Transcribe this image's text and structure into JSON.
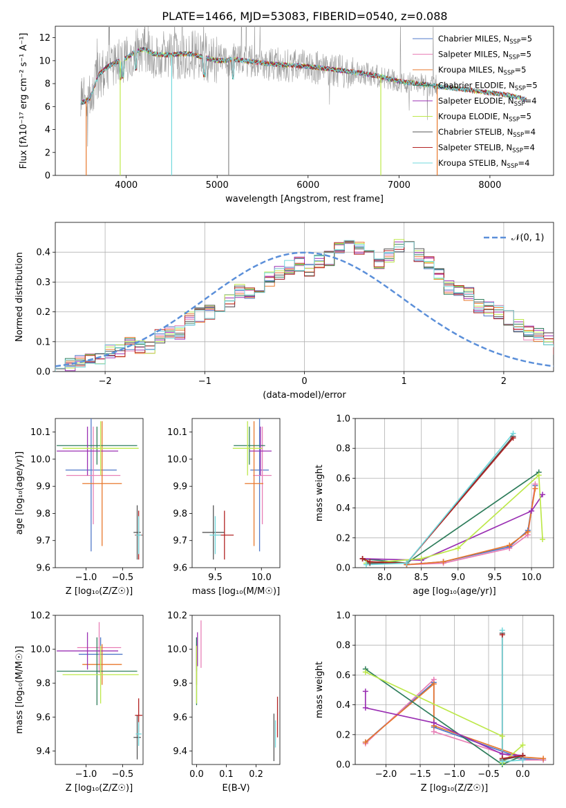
{
  "figure_title": "PLATE=1466, MJD=53083, FIBERID=0540, z=0.088",
  "colors": {
    "Chabrier MILES": "#4f78c8",
    "Salpeter MILES": "#e87fb6",
    "Kroupa MILES": "#e8772b",
    "Chabrier ELODIE": "#2e7d5b",
    "Salpeter ELODIE": "#9a2fb3",
    "Kroupa ELODIE": "#bde84a",
    "Chabrier STELIB": "#555555",
    "Salpeter STELIB": "#b22222",
    "Kroupa STELIB": "#72d8dc",
    "normal": "#5b8fd9",
    "grid": "#b0b0b0"
  },
  "chart_data": [
    {
      "id": "spectrum",
      "type": "line",
      "xlabel": "wavelength [Angstrom, rest frame]",
      "ylabel": "Flux [fλ10⁻¹⁷ erg cm⁻² s⁻¹ A⁻¹]",
      "xlim": [
        3220,
        8700
      ],
      "ylim": [
        0,
        13
      ],
      "xticks": [
        4000,
        5000,
        6000,
        7000,
        8000
      ],
      "yticks": [
        0,
        2,
        4,
        6,
        8,
        10,
        12
      ],
      "grid": false,
      "legend_position": "upper-right",
      "continuum": {
        "x": [
          3500,
          3600,
          3700,
          3800,
          3900,
          4000,
          4100,
          4200,
          4300,
          4400,
          4500,
          4600,
          4700,
          4800,
          4900,
          5000,
          5200,
          5400,
          5600,
          5800,
          6000,
          6200,
          6400,
          6600,
          6800,
          7000,
          7200,
          7400,
          7600,
          7800,
          8000,
          8200,
          8400
        ],
        "y": [
          6.3,
          6.7,
          8.8,
          9.5,
          9.9,
          10.2,
          10.8,
          11.0,
          10.6,
          10.5,
          10.5,
          10.6,
          10.6,
          10.4,
          10.2,
          10.0,
          10.1,
          9.9,
          9.7,
          9.6,
          9.5,
          9.3,
          9.1,
          8.9,
          8.6,
          8.2,
          8.0,
          7.8,
          7.6,
          7.4,
          7.2,
          7.0,
          6.6
        ]
      },
      "series": [
        {
          "name": "Chabrier MILES, N_SSP=5",
          "label_main": "Chabrier MILES, N",
          "label_sub": "SSP",
          "label_tail": "=5"
        },
        {
          "name": "Salpeter MILES, N_SSP=5",
          "label_main": "Salpeter MILES, N",
          "label_sub": "SSP",
          "label_tail": "=5"
        },
        {
          "name": "Kroupa MILES, N_SSP=5",
          "label_main": "Kroupa MILES, N",
          "label_sub": "SSP",
          "label_tail": "=5"
        },
        {
          "name": "Chabrier ELODIE, N_SSP=5",
          "label_main": "Chabrier ELODIE, N",
          "label_sub": "SSP",
          "label_tail": "=5"
        },
        {
          "name": "Salpeter ELODIE, N_SSP=4",
          "label_main": "Salpeter ELODIE, N",
          "label_sub": "SSP",
          "label_tail": "=4"
        },
        {
          "name": "Kroupa ELODIE, N_SSP=5",
          "label_main": "Kroupa ELODIE, N",
          "label_sub": "SSP",
          "label_tail": "=5"
        },
        {
          "name": "Chabrier STELIB, N_SSP=4",
          "label_main": "Chabrier STELIB, N",
          "label_sub": "SSP",
          "label_tail": "=4"
        },
        {
          "name": "Salpeter STELIB, N_SSP=4",
          "label_main": "Salpeter STELIB, N",
          "label_sub": "SSP",
          "label_tail": "=4"
        },
        {
          "name": "Kroupa STELIB, N_SSP=4",
          "label_main": "Kroupa STELIB, N",
          "label_sub": "SSP",
          "label_tail": "=4"
        }
      ]
    },
    {
      "id": "residuals",
      "type": "histogram",
      "xlabel": "(data-model)/error",
      "ylabel": "Normed distribution",
      "xlim": [
        -2.5,
        2.5
      ],
      "ylim": [
        0,
        0.5
      ],
      "xticks": [
        -2,
        -1,
        0,
        1,
        2
      ],
      "xticklabels": [
        "−2",
        "−1",
        "0",
        "1",
        "2"
      ],
      "yticks": [
        0.0,
        0.1,
        0.2,
        0.3,
        0.4
      ],
      "yticklabels": [
        "0.0",
        "0.1",
        "0.2",
        "0.3",
        "0.4"
      ],
      "grid": true,
      "bin_width": 0.1,
      "bins_start": -2.5,
      "base_heights": [
        0.02,
        0.02,
        0.03,
        0.04,
        0.05,
        0.07,
        0.07,
        0.09,
        0.08,
        0.08,
        0.12,
        0.13,
        0.13,
        0.18,
        0.19,
        0.2,
        0.22,
        0.24,
        0.27,
        0.26,
        0.28,
        0.31,
        0.33,
        0.35,
        0.36,
        0.34,
        0.37,
        0.38,
        0.41,
        0.43,
        0.41,
        0.39,
        0.36,
        0.39,
        0.42,
        0.42,
        0.39,
        0.36,
        0.33,
        0.28,
        0.27,
        0.26,
        0.22,
        0.21,
        0.2,
        0.18,
        0.15,
        0.13,
        0.12,
        0.11,
        0.08,
        0.07,
        0.07,
        0.06,
        0.05,
        0.05,
        0.04,
        0.03,
        0.03,
        0.03,
        0.02,
        0.02
      ],
      "normal_curve": {
        "label": "𝒩(0, 1)",
        "mean": 0,
        "sigma": 1
      },
      "legend_position": "upper-right"
    },
    {
      "id": "age_vs_Z",
      "type": "errorbar",
      "xlabel": "Z [log₁₀(Z/Z☉)]",
      "ylabel": "age  [log₁₀(age/yr)]",
      "xlim": [
        -1.42,
        -0.22
      ],
      "ylim": [
        9.6,
        10.15
      ],
      "xticks": [
        -1.0,
        -0.5
      ],
      "xticklabels": [
        "−1.0",
        "−0.5"
      ],
      "yticks": [
        9.6,
        9.7,
        9.8,
        9.9,
        10.0,
        10.1
      ],
      "yticklabels": [
        "9.6",
        "9.7",
        "9.8",
        "9.9",
        "10.0",
        "10.1"
      ],
      "grid": false,
      "points": [
        {
          "series": "Chabrier MILES",
          "x": -0.93,
          "xerr": 0.35,
          "y": 9.96,
          "yerr": 0.3
        },
        {
          "series": "Salpeter MILES",
          "x": -0.9,
          "xerr": 0.37,
          "y": 9.94,
          "yerr": 0.18
        },
        {
          "series": "Kroupa MILES",
          "x": -0.78,
          "xerr": 0.27,
          "y": 9.91,
          "yerr": 0.23
        },
        {
          "series": "Chabrier ELODIE",
          "x": -0.85,
          "xerr": 0.55,
          "y": 10.05,
          "yerr": 0.07
        },
        {
          "series": "Salpeter ELODIE",
          "x": -0.98,
          "xerr": 0.42,
          "y": 10.03,
          "yerr": 0.09
        },
        {
          "series": "Kroupa ELODIE",
          "x": -0.8,
          "xerr": 0.52,
          "y": 10.04,
          "yerr": 0.1
        },
        {
          "series": "Chabrier STELIB",
          "x": -0.3,
          "xerr": 0.05,
          "y": 9.73,
          "yerr": 0.1
        },
        {
          "series": "Salpeter STELIB",
          "x": -0.28,
          "xerr": 0.05,
          "y": 9.72,
          "yerr": 0.09
        },
        {
          "series": "Kroupa STELIB",
          "x": -0.28,
          "xerr": 0.04,
          "y": 9.72,
          "yerr": 0.07
        }
      ]
    },
    {
      "id": "age_vs_mass",
      "type": "errorbar",
      "xlabel": "mass [log₁₀(M/M☉)]",
      "ylabel": "",
      "xlim": [
        9.25,
        10.2
      ],
      "ylim": [
        9.6,
        10.15
      ],
      "xticks": [
        9.5,
        10.0
      ],
      "xticklabels": [
        "9.5",
        "10.0"
      ],
      "yticks": [
        9.6,
        9.7,
        9.8,
        9.9,
        10.0,
        10.1
      ],
      "yticklabels": [
        "9.6",
        "9.7",
        "9.8",
        "9.9",
        "10.0",
        "10.1"
      ],
      "grid": false,
      "points": [
        {
          "series": "Chabrier MILES",
          "x": 9.98,
          "xerr": 0.1,
          "y": 9.96,
          "yerr": 0.3
        },
        {
          "series": "Salpeter MILES",
          "x": 10.01,
          "xerr": 0.1,
          "y": 9.94,
          "yerr": 0.18
        },
        {
          "series": "Kroupa MILES",
          "x": 9.92,
          "xerr": 0.1,
          "y": 9.91,
          "yerr": 0.23
        },
        {
          "series": "Chabrier ELODIE",
          "x": 9.87,
          "xerr": 0.17,
          "y": 10.05,
          "yerr": 0.07
        },
        {
          "series": "Salpeter ELODIE",
          "x": 9.99,
          "xerr": 0.12,
          "y": 10.03,
          "yerr": 0.09
        },
        {
          "series": "Kroupa ELODIE",
          "x": 9.85,
          "xerr": 0.16,
          "y": 10.04,
          "yerr": 0.1
        },
        {
          "series": "Chabrier STELIB",
          "x": 9.48,
          "xerr": 0.12,
          "y": 9.73,
          "yerr": 0.1
        },
        {
          "series": "Salpeter STELIB",
          "x": 9.6,
          "xerr": 0.1,
          "y": 9.72,
          "yerr": 0.09
        },
        {
          "series": "Kroupa STELIB",
          "x": 9.5,
          "xerr": 0.06,
          "y": 9.72,
          "yerr": 0.07
        }
      ]
    },
    {
      "id": "mass_weight_vs_age",
      "type": "line",
      "xlabel": "age  [log₁₀(age/yr)]",
      "ylabel": "mass weight",
      "xlim": [
        7.6,
        10.3
      ],
      "ylim": [
        0,
        1.0
      ],
      "xticks": [
        8.0,
        8.5,
        9.0,
        9.5,
        10.0
      ],
      "xticklabels": [
        "8.0",
        "8.5",
        "9.0",
        "9.5",
        "10.0"
      ],
      "yticks": [
        0.0,
        0.2,
        0.4,
        0.6,
        0.8,
        1.0
      ],
      "yticklabels": [
        "0.0",
        "0.2",
        "0.4",
        "0.6",
        "0.8",
        "1.0"
      ],
      "grid": true,
      "series": [
        {
          "series": "Chabrier MILES",
          "x": [
            8.3,
            8.8,
            9.7,
            9.95,
            10.05
          ],
          "y": [
            0.02,
            0.04,
            0.14,
            0.25,
            0.55
          ]
        },
        {
          "series": "Salpeter MILES",
          "x": [
            8.3,
            8.8,
            9.7,
            9.95,
            10.05
          ],
          "y": [
            0.02,
            0.03,
            0.13,
            0.22,
            0.56
          ]
        },
        {
          "series": "Kroupa MILES",
          "x": [
            8.3,
            8.8,
            9.7,
            9.95,
            10.05
          ],
          "y": [
            0.02,
            0.04,
            0.15,
            0.24,
            0.53
          ]
        },
        {
          "series": "Chabrier ELODIE",
          "x": [
            7.7,
            8.3,
            10.1
          ],
          "y": [
            0.06,
            0.03,
            0.64
          ]
        },
        {
          "series": "Salpeter ELODIE",
          "x": [
            7.7,
            8.5,
            10.0,
            10.15
          ],
          "y": [
            0.06,
            0.05,
            0.38,
            0.49
          ]
        },
        {
          "series": "Kroupa ELODIE",
          "x": [
            7.75,
            8.5,
            9.0,
            10.1,
            10.15
          ],
          "y": [
            0.03,
            0.06,
            0.13,
            0.62,
            0.19
          ]
        },
        {
          "series": "Chabrier STELIB",
          "x": [
            7.7,
            7.8,
            8.3,
            9.75
          ],
          "y": [
            0.06,
            0.03,
            0.03,
            0.88
          ]
        },
        {
          "series": "Salpeter STELIB",
          "x": [
            7.7,
            7.8,
            8.3,
            9.75
          ],
          "y": [
            0.06,
            0.04,
            0.03,
            0.87
          ]
        },
        {
          "series": "Kroupa STELIB",
          "x": [
            7.75,
            8.3,
            9.75
          ],
          "y": [
            0.02,
            0.03,
            0.9
          ]
        }
      ]
    },
    {
      "id": "mass_vs_Z",
      "type": "errorbar",
      "xlabel": "Z [log₁₀(Z/Z☉)]",
      "ylabel": "mass [log₁₀(M/M☉)]",
      "xlim": [
        -1.42,
        -0.22
      ],
      "ylim": [
        9.32,
        10.2
      ],
      "xticks": [
        -1.0,
        -0.5
      ],
      "xticklabels": [
        "−1.0",
        "−0.5"
      ],
      "yticks": [
        9.4,
        9.6,
        9.8,
        10.0,
        10.2
      ],
      "yticklabels": [
        "9.4",
        "9.6",
        "9.8",
        "10.0",
        "10.2"
      ],
      "grid": false,
      "points": [
        {
          "series": "Chabrier MILES",
          "x": -0.8,
          "xerr": 0.3,
          "y": 9.97,
          "yerr": 0.1
        },
        {
          "series": "Salpeter MILES",
          "x": -0.82,
          "xerr": 0.3,
          "y": 10.01,
          "yerr": 0.15
        },
        {
          "series": "Kroupa MILES",
          "x": -0.78,
          "xerr": 0.27,
          "y": 9.91,
          "yerr": 0.12
        },
        {
          "series": "Chabrier ELODIE",
          "x": -0.85,
          "xerr": 0.55,
          "y": 9.87,
          "yerr": 0.2
        },
        {
          "series": "Salpeter ELODIE",
          "x": -0.98,
          "xerr": 0.42,
          "y": 9.99,
          "yerr": 0.11
        },
        {
          "series": "Kroupa ELODIE",
          "x": -0.8,
          "xerr": 0.52,
          "y": 9.85,
          "yerr": 0.17
        },
        {
          "series": "Chabrier STELIB",
          "x": -0.3,
          "xerr": 0.05,
          "y": 9.48,
          "yerr": 0.13
        },
        {
          "series": "Salpeter STELIB",
          "x": -0.28,
          "xerr": 0.05,
          "y": 9.61,
          "yerr": 0.1
        },
        {
          "series": "Kroupa STELIB",
          "x": -0.28,
          "xerr": 0.04,
          "y": 9.5,
          "yerr": 0.07
        }
      ]
    },
    {
      "id": "mass_vs_ebv",
      "type": "errorbar",
      "xlabel": "E(B-V)",
      "ylabel": "",
      "xlim": [
        -0.015,
        0.28
      ],
      "ylim": [
        9.32,
        10.2
      ],
      "xticks": [
        0.0,
        0.1,
        0.2
      ],
      "xticklabels": [
        "0.0",
        "0.1",
        "0.2"
      ],
      "yticks": [
        9.4,
        9.6,
        9.8,
        10.0,
        10.2
      ],
      "yticklabels": [
        "9.4",
        "9.6",
        "9.8",
        "10.0",
        "10.2"
      ],
      "grid": false,
      "points": [
        {
          "series": "Chabrier MILES",
          "x": 0.0,
          "xerr": 0.0,
          "y": 9.97,
          "yerr": 0.1
        },
        {
          "series": "Salpeter MILES",
          "x": 0.015,
          "xerr": 0.0,
          "y": 10.03,
          "yerr": 0.14
        },
        {
          "series": "Kroupa MILES",
          "x": 0.0,
          "xerr": 0.0,
          "y": 9.91,
          "yerr": 0.12
        },
        {
          "series": "Chabrier ELODIE",
          "x": 0.0,
          "xerr": 0.0,
          "y": 9.87,
          "yerr": 0.2
        },
        {
          "series": "Salpeter ELODIE",
          "x": 0.003,
          "xerr": 0.0,
          "y": 10.0,
          "yerr": 0.1
        },
        {
          "series": "Kroupa ELODIE",
          "x": 0.0,
          "xerr": 0.0,
          "y": 9.85,
          "yerr": 0.17
        },
        {
          "series": "Chabrier STELIB",
          "x": 0.26,
          "xerr": 0.0,
          "y": 9.48,
          "yerr": 0.14
        },
        {
          "series": "Salpeter STELIB",
          "x": 0.272,
          "xerr": 0.0,
          "y": 9.6,
          "yerr": 0.12
        },
        {
          "series": "Kroupa STELIB",
          "x": 0.265,
          "xerr": 0.0,
          "y": 9.5,
          "yerr": 0.08
        }
      ]
    },
    {
      "id": "mass_weight_vs_Z",
      "type": "line",
      "xlabel": "Z [log₁₀(Z/Z☉)]",
      "ylabel": "mass weight",
      "xlim": [
        -2.45,
        0.45
      ],
      "ylim": [
        0,
        1.0
      ],
      "xticks": [
        -2.0,
        -1.5,
        -1.0,
        -0.5,
        0.0
      ],
      "xticklabels": [
        "−2.0",
        "−1.5",
        "−1.0",
        "−0.5",
        "0.0"
      ],
      "yticks": [
        0.0,
        0.2,
        0.4,
        0.6,
        0.8,
        1.0
      ],
      "yticklabels": [
        "0.0",
        "0.2",
        "0.4",
        "0.6",
        "0.8",
        "1.0"
      ],
      "grid": true,
      "series": [
        {
          "series": "Chabrier MILES",
          "x": [
            -2.3,
            -1.3,
            -1.3,
            0.0,
            0.3
          ],
          "y": [
            0.15,
            0.55,
            0.25,
            0.04,
            0.03
          ]
        },
        {
          "series": "Salpeter MILES",
          "x": [
            -2.3,
            -1.3,
            -1.3,
            0.0,
            0.3
          ],
          "y": [
            0.14,
            0.57,
            0.22,
            0.03,
            0.03
          ]
        },
        {
          "series": "Kroupa MILES",
          "x": [
            -2.3,
            -1.3,
            -1.3,
            0.0,
            0.3
          ],
          "y": [
            0.15,
            0.54,
            0.26,
            0.05,
            0.04
          ]
        },
        {
          "series": "Chabrier ELODIE",
          "x": [
            -2.3,
            -0.3,
            0.0
          ],
          "y": [
            0.64,
            0.0,
            0.06
          ]
        },
        {
          "series": "Salpeter ELODIE",
          "x": [
            -2.3,
            -2.3,
            -1.3,
            -0.3,
            0.0
          ],
          "y": [
            0.49,
            0.38,
            0.28,
            0.07,
            0.06
          ]
        },
        {
          "series": "Kroupa ELODIE",
          "x": [
            -2.3,
            -0.3,
            -0.3,
            0.0
          ],
          "y": [
            0.62,
            0.19,
            0.01,
            0.13
          ]
        },
        {
          "series": "Chabrier STELIB",
          "x": [
            -0.3,
            -0.3,
            0.0
          ],
          "y": [
            0.88,
            0.03,
            0.06
          ]
        },
        {
          "series": "Salpeter STELIB",
          "x": [
            -0.3,
            -0.3,
            0.0
          ],
          "y": [
            0.87,
            0.04,
            0.06
          ]
        },
        {
          "series": "Kroupa STELIB",
          "x": [
            -0.3,
            -0.3,
            0.0
          ],
          "y": [
            0.9,
            0.02,
            0.03
          ]
        }
      ]
    }
  ]
}
